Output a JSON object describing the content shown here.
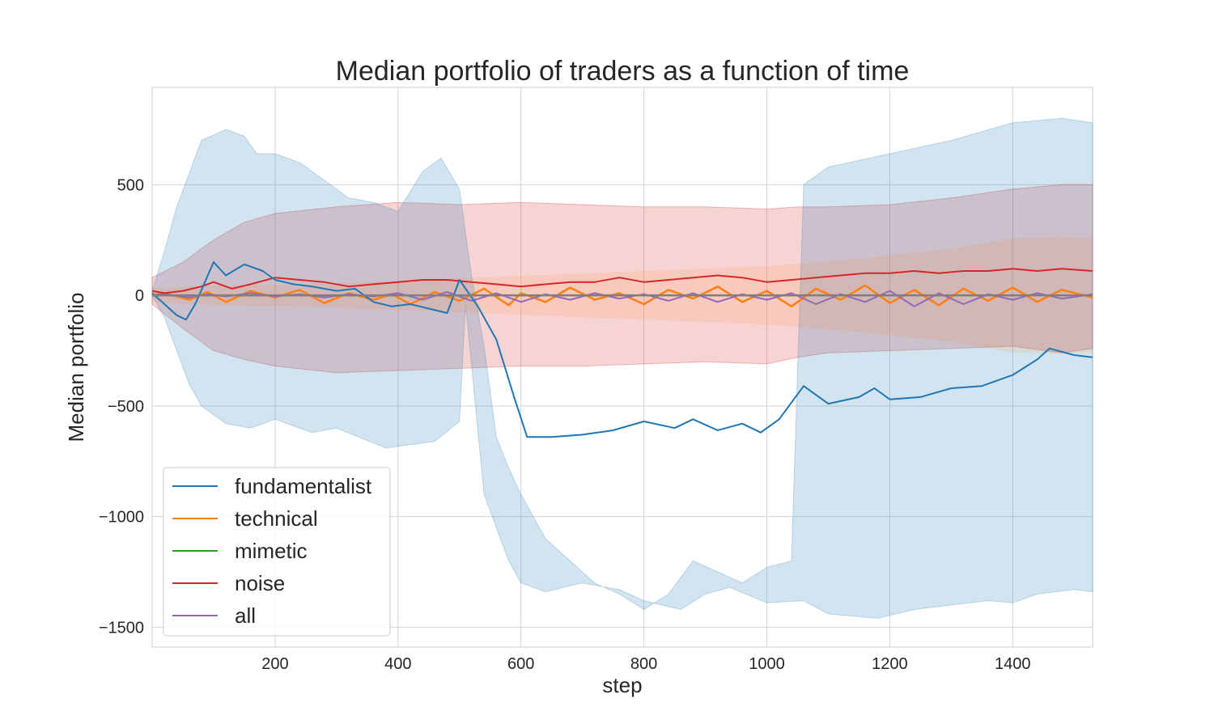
{
  "chart_data": {
    "type": "line",
    "title": "Median portfolio of traders as a function of time",
    "xlabel": "step",
    "ylabel": "Median portfolio",
    "xlim": [
      0,
      1530
    ],
    "ylim": [
      -1590,
      940
    ],
    "xticks": [
      200,
      400,
      600,
      800,
      1000,
      1200,
      1400
    ],
    "xtick_labels": [
      "200",
      "400",
      "600",
      "800",
      "1000",
      "1200",
      "1400"
    ],
    "yticks": [
      -1500,
      -1000,
      -500,
      0,
      500
    ],
    "ytick_labels": [
      "−1500",
      "−1000",
      "−500",
      "0",
      "500"
    ],
    "grid": true,
    "legend_position": "lower-left",
    "series": [
      {
        "name": "fundamentalist",
        "color": "#1f77b4",
        "x": [
          0,
          20,
          40,
          55,
          70,
          100,
          120,
          150,
          180,
          200,
          230,
          260,
          300,
          330,
          360,
          390,
          420,
          450,
          480,
          500,
          530,
          560,
          590,
          610,
          650,
          700,
          750,
          800,
          850,
          880,
          920,
          960,
          990,
          1020,
          1060,
          1100,
          1150,
          1175,
          1200,
          1250,
          1300,
          1350,
          1400,
          1440,
          1460,
          1500,
          1530
        ],
        "values": [
          10,
          -40,
          -90,
          -110,
          -40,
          150,
          90,
          140,
          110,
          70,
          50,
          40,
          20,
          30,
          -30,
          -50,
          -40,
          -60,
          -80,
          70,
          -50,
          -200,
          -470,
          -640,
          -640,
          -630,
          -610,
          -570,
          -600,
          -560,
          -610,
          -580,
          -620,
          -560,
          -410,
          -490,
          -460,
          -420,
          -470,
          -460,
          -420,
          -410,
          -360,
          -290,
          -240,
          -270,
          -280
        ],
        "band_upper": [
          20,
          200,
          400,
          550,
          700,
          750,
          720,
          640,
          640,
          600,
          520,
          440,
          420,
          380,
          560,
          620,
          480,
          80,
          -230,
          -640,
          -780,
          -900,
          -1000,
          -1100,
          -1200,
          -1300,
          -1350,
          -1420,
          -1350,
          -1200,
          -1250,
          -1300,
          -1230,
          -1200,
          500,
          580,
          700,
          780,
          800,
          780
        ],
        "band_lower": [
          0,
          -100,
          -250,
          -400,
          -500,
          -580,
          -600,
          -560,
          -620,
          -600,
          -690,
          -660,
          -570,
          -40,
          -900,
          -1200,
          -1300,
          -1340,
          -1300,
          -1330,
          -1380,
          -1420,
          -1350,
          -1320,
          -1390,
          -1380,
          -1440,
          -1460,
          -1420,
          -1400,
          -1380,
          -1390,
          -1350,
          -1330,
          -1340
        ],
        "band_x_upper": [
          0,
          20,
          40,
          60,
          80,
          120,
          150,
          170,
          200,
          240,
          280,
          320,
          360,
          400,
          440,
          470,
          500,
          520,
          540,
          560,
          580,
          600,
          620,
          640,
          680,
          720,
          760,
          800,
          840,
          880,
          920,
          960,
          1000,
          1040,
          1060,
          1100,
          1300,
          1400,
          1480,
          1530
        ],
        "band_x_lower": [
          0,
          20,
          40,
          60,
          80,
          120,
          160,
          200,
          260,
          300,
          380,
          460,
          500,
          510,
          540,
          580,
          600,
          640,
          700,
          760,
          800,
          860,
          900,
          940,
          1000,
          1060,
          1100,
          1180,
          1240,
          1300,
          1360,
          1400,
          1440,
          1500,
          1530
        ]
      },
      {
        "name": "technical",
        "color": "#ff7f0e",
        "x": [
          0,
          20,
          60,
          90,
          120,
          160,
          200,
          240,
          280,
          320,
          360,
          390,
          420,
          460,
          500,
          540,
          580,
          600,
          640,
          680,
          720,
          760,
          800,
          840,
          880,
          920,
          960,
          1000,
          1040,
          1080,
          1120,
          1160,
          1200,
          1240,
          1280,
          1320,
          1360,
          1400,
          1440,
          1480,
          1530
        ],
        "values": [
          0,
          10,
          -20,
          15,
          -30,
          20,
          -10,
          25,
          -35,
          10,
          -20,
          5,
          -40,
          15,
          -25,
          30,
          -45,
          10,
          -30,
          35,
          -20,
          10,
          -40,
          25,
          -15,
          40,
          -30,
          20,
          -50,
          30,
          -20,
          45,
          -35,
          25,
          -45,
          30,
          -25,
          35,
          -30,
          25,
          -10
        ],
        "band_upper": [
          60,
          80,
          90,
          100,
          120,
          140,
          160,
          180,
          200,
          220,
          240,
          260,
          280,
          300,
          330,
          380,
          470,
          480,
          470
        ],
        "band_lower": [
          -60,
          -80,
          -90,
          -100,
          -120,
          -140,
          -160,
          -180,
          -200,
          -220,
          -240,
          -260,
          -280,
          -300,
          -330,
          -380,
          -470,
          -480,
          -470
        ],
        "band_x": [
          0,
          100,
          200,
          300,
          400,
          500,
          600,
          700,
          800,
          900,
          1000,
          1050,
          1100,
          1150,
          1200,
          1300,
          1400,
          1480,
          1530
        ]
      },
      {
        "name": "mimetic",
        "color": "#2ca02c",
        "x": [
          0,
          1530
        ],
        "values": [
          0,
          0
        ]
      },
      {
        "name": "noise",
        "color": "#d62728",
        "x": [
          0,
          20,
          50,
          80,
          100,
          130,
          160,
          200,
          240,
          280,
          320,
          360,
          400,
          440,
          480,
          520,
          560,
          600,
          640,
          680,
          720,
          760,
          800,
          840,
          880,
          920,
          960,
          1000,
          1040,
          1080,
          1120,
          1160,
          1200,
          1240,
          1280,
          1320,
          1360,
          1400,
          1440,
          1480,
          1530
        ],
        "values": [
          20,
          10,
          20,
          40,
          60,
          30,
          50,
          80,
          70,
          60,
          40,
          50,
          60,
          70,
          70,
          60,
          50,
          40,
          50,
          60,
          60,
          80,
          60,
          70,
          80,
          90,
          80,
          60,
          70,
          80,
          90,
          100,
          100,
          110,
          100,
          110,
          110,
          120,
          110,
          120,
          110
        ],
        "band_upper": [
          80,
          150,
          250,
          330,
          370,
          400,
          420,
          410,
          420,
          410,
          400,
          400,
          390,
          400,
          400,
          410,
          440,
          480,
          500,
          500
        ],
        "band_lower": [
          -40,
          -150,
          -250,
          -290,
          -320,
          -350,
          -340,
          -330,
          -320,
          -320,
          -310,
          -300,
          -310,
          -280,
          -260,
          -250,
          -240,
          -230,
          -260,
          -240
        ],
        "band_x": [
          0,
          50,
          100,
          150,
          200,
          300,
          400,
          500,
          600,
          700,
          800,
          900,
          1000,
          1050,
          1100,
          1200,
          1300,
          1400,
          1480,
          1530
        ]
      },
      {
        "name": "all",
        "color": "#9467bd",
        "x": [
          0,
          20,
          60,
          90,
          120,
          160,
          200,
          240,
          280,
          320,
          360,
          400,
          440,
          480,
          520,
          560,
          600,
          640,
          680,
          720,
          760,
          800,
          840,
          880,
          920,
          960,
          1000,
          1040,
          1080,
          1120,
          1160,
          1200,
          1240,
          1280,
          1320,
          1360,
          1400,
          1440,
          1480,
          1530
        ],
        "values": [
          0,
          5,
          -10,
          5,
          -5,
          10,
          -5,
          5,
          -10,
          5,
          -5,
          10,
          -20,
          15,
          -25,
          10,
          -30,
          5,
          -20,
          10,
          -15,
          5,
          -25,
          10,
          -30,
          5,
          -20,
          10,
          -40,
          5,
          -30,
          20,
          -50,
          10,
          -40,
          5,
          -20,
          10,
          -15,
          5
        ]
      }
    ]
  }
}
